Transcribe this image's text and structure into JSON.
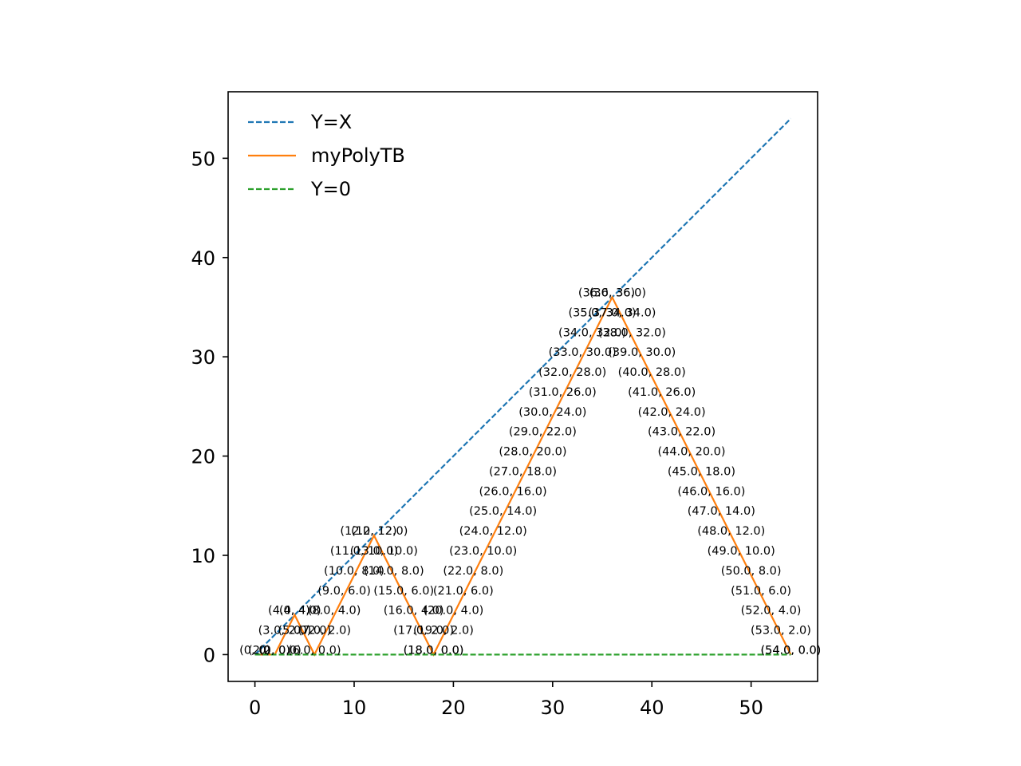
{
  "chart_data": {
    "type": "line",
    "xlim": [
      -2.7,
      56.7
    ],
    "ylim": [
      -2.7,
      56.7
    ],
    "xticks": [
      0,
      10,
      20,
      30,
      40,
      50
    ],
    "yticks": [
      0,
      10,
      20,
      30,
      40,
      50
    ],
    "xtick_labels": [
      "0",
      "10",
      "20",
      "30",
      "40",
      "50"
    ],
    "ytick_labels": [
      "0",
      "10",
      "20",
      "30",
      "40",
      "50"
    ],
    "grid": false,
    "legend_position": "top-left",
    "series": [
      {
        "name": "Y=X",
        "color": "#1f77b4",
        "style": "dashed",
        "points": [
          [
            0,
            0
          ],
          [
            54,
            54
          ]
        ]
      },
      {
        "name": "myPolyTB",
        "color": "#ff7f0e",
        "style": "solid",
        "points": [
          [
            0,
            0
          ],
          [
            2,
            0
          ],
          [
            4,
            4
          ],
          [
            6,
            0
          ],
          [
            12,
            12
          ],
          [
            18,
            0
          ],
          [
            36,
            36
          ],
          [
            54,
            0
          ]
        ]
      },
      {
        "name": "Y=0",
        "color": "#2ca02c",
        "style": "dashed",
        "points": [
          [
            0,
            0
          ],
          [
            54,
            0
          ]
        ]
      }
    ],
    "annotations": [
      {
        "x": 0,
        "y": 0,
        "text": "(0, 0)"
      },
      {
        "x": 2,
        "y": 0,
        "text": "(2, 0)"
      },
      {
        "x": 2,
        "y": 0,
        "text": "(2.0, 0.0)"
      },
      {
        "x": 4,
        "y": 4,
        "text": "(4, 4)"
      },
      {
        "x": 4,
        "y": 4,
        "text": "(4.0, 4.0)"
      },
      {
        "x": 3,
        "y": 2,
        "text": "(3.0, 2.0)"
      },
      {
        "x": 5,
        "y": 2,
        "text": "(5.0, 2.0)"
      },
      {
        "x": 6,
        "y": 0,
        "text": "(6.0, 0.0)"
      },
      {
        "x": 7,
        "y": 2,
        "text": "(7.0, 2.0)"
      },
      {
        "x": 8,
        "y": 4,
        "text": "(8.0, 4.0)"
      },
      {
        "x": 9,
        "y": 6,
        "text": "(9.0, 6.0)"
      },
      {
        "x": 10,
        "y": 8,
        "text": "(10.0, 8.0)"
      },
      {
        "x": 11,
        "y": 10,
        "text": "(11.0, 10.0)"
      },
      {
        "x": 12,
        "y": 12,
        "text": "(12, 12)"
      },
      {
        "x": 12,
        "y": 12,
        "text": "(12.0, 12.0)"
      },
      {
        "x": 13,
        "y": 10,
        "text": "(13.0, 10.0)"
      },
      {
        "x": 14,
        "y": 8,
        "text": "(14.0, 8.0)"
      },
      {
        "x": 15,
        "y": 6,
        "text": "(15.0, 6.0)"
      },
      {
        "x": 16,
        "y": 4,
        "text": "(16.0, 4.0)"
      },
      {
        "x": 17,
        "y": 2,
        "text": "(17.0, 2.0)"
      },
      {
        "x": 18,
        "y": 0,
        "text": "(18.0, 0.0)"
      },
      {
        "x": 18,
        "y": 0,
        "text": "(18.0, 0.0)"
      },
      {
        "x": 19,
        "y": 2,
        "text": "(19.0, 2.0)"
      },
      {
        "x": 20,
        "y": 4,
        "text": "(20.0, 4.0)"
      },
      {
        "x": 21,
        "y": 6,
        "text": "(21.0, 6.0)"
      },
      {
        "x": 22,
        "y": 8,
        "text": "(22.0, 8.0)"
      },
      {
        "x": 23,
        "y": 10,
        "text": "(23.0, 10.0)"
      },
      {
        "x": 24,
        "y": 12,
        "text": "(24.0, 12.0)"
      },
      {
        "x": 25,
        "y": 14,
        "text": "(25.0, 14.0)"
      },
      {
        "x": 26,
        "y": 16,
        "text": "(26.0, 16.0)"
      },
      {
        "x": 27,
        "y": 18,
        "text": "(27.0, 18.0)"
      },
      {
        "x": 28,
        "y": 20,
        "text": "(28.0, 20.0)"
      },
      {
        "x": 29,
        "y": 22,
        "text": "(29.0, 22.0)"
      },
      {
        "x": 30,
        "y": 24,
        "text": "(30.0, 24.0)"
      },
      {
        "x": 31,
        "y": 26,
        "text": "(31.0, 26.0)"
      },
      {
        "x": 32,
        "y": 28,
        "text": "(32.0, 28.0)"
      },
      {
        "x": 33,
        "y": 30,
        "text": "(33.0, 30.0)"
      },
      {
        "x": 34,
        "y": 32,
        "text": "(34.0, 32.0)"
      },
      {
        "x": 35,
        "y": 34,
        "text": "(35.0, 34.0)"
      },
      {
        "x": 36,
        "y": 36,
        "text": "(36, 36)"
      },
      {
        "x": 36,
        "y": 36,
        "text": "(36.0, 36.0)"
      },
      {
        "x": 37,
        "y": 34,
        "text": "(37.0, 34.0)"
      },
      {
        "x": 38,
        "y": 32,
        "text": "(38.0, 32.0)"
      },
      {
        "x": 39,
        "y": 30,
        "text": "(39.0, 30.0)"
      },
      {
        "x": 40,
        "y": 28,
        "text": "(40.0, 28.0)"
      },
      {
        "x": 41,
        "y": 26,
        "text": "(41.0, 26.0)"
      },
      {
        "x": 42,
        "y": 24,
        "text": "(42.0, 24.0)"
      },
      {
        "x": 43,
        "y": 22,
        "text": "(43.0, 22.0)"
      },
      {
        "x": 44,
        "y": 20,
        "text": "(44.0, 20.0)"
      },
      {
        "x": 45,
        "y": 18,
        "text": "(45.0, 18.0)"
      },
      {
        "x": 46,
        "y": 16,
        "text": "(46.0, 16.0)"
      },
      {
        "x": 47,
        "y": 14,
        "text": "(47.0, 14.0)"
      },
      {
        "x": 48,
        "y": 12,
        "text": "(48.0, 12.0)"
      },
      {
        "x": 49,
        "y": 10,
        "text": "(49.0, 10.0)"
      },
      {
        "x": 50,
        "y": 8,
        "text": "(50.0, 8.0)"
      },
      {
        "x": 51,
        "y": 6,
        "text": "(51.0, 6.0)"
      },
      {
        "x": 52,
        "y": 4,
        "text": "(52.0, 4.0)"
      },
      {
        "x": 53,
        "y": 2,
        "text": "(53.0, 2.0)"
      },
      {
        "x": 54,
        "y": 0,
        "text": "(54.0, 0.0)"
      },
      {
        "x": 54,
        "y": 0,
        "text": "(54.0, 0.0)"
      }
    ]
  }
}
